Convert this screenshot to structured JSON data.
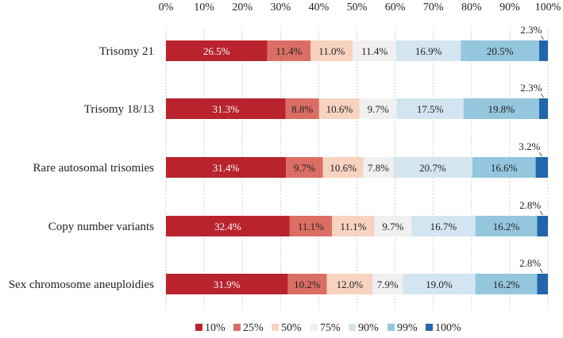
{
  "chart_data": {
    "type": "bar",
    "orientation": "horizontal",
    "stacked": true,
    "xlim": [
      0,
      100
    ],
    "x_ticks": [
      "0%",
      "10%",
      "20%",
      "30%",
      "40%",
      "50%",
      "60%",
      "70%",
      "80%",
      "90%",
      "100%"
    ],
    "legend_position": "bottom",
    "grid": true,
    "categories": [
      "Trisomy 21",
      "Trisomy 18/13",
      "Rare autosomal trisomies",
      "Copy number variants",
      "Sex chromosome aneuploidies"
    ],
    "series": [
      {
        "name": "10%",
        "color": "#b8232e",
        "label_color": "#ffffff",
        "values": [
          26.5,
          31.3,
          31.4,
          32.4,
          31.9
        ],
        "labels": [
          "26.5%",
          "31.3%",
          "31.4%",
          "32.4%",
          "31.9%"
        ]
      },
      {
        "name": "25%",
        "color": "#db6e64",
        "label_color": "#222222",
        "values": [
          11.4,
          8.8,
          9.7,
          11.1,
          10.2
        ],
        "labels": [
          "11.4%",
          "8.8%",
          "9.7%",
          "11.1%",
          "10.2%"
        ]
      },
      {
        "name": "50%",
        "color": "#f8d3c0",
        "label_color": "#222222",
        "values": [
          11.0,
          10.6,
          10.6,
          11.1,
          12.0
        ],
        "labels": [
          "11.0%",
          "10.6%",
          "10.6%",
          "11.1%",
          "12.0%"
        ]
      },
      {
        "name": "75%",
        "color": "#f0f0f0",
        "label_color": "#222222",
        "values": [
          11.4,
          9.7,
          7.8,
          9.7,
          7.9
        ],
        "labels": [
          "11.4%",
          "9.7%",
          "7.8%",
          "9.7%",
          "7.9%"
        ]
      },
      {
        "name": "90%",
        "color": "#d3e5f0",
        "label_color": "#222222",
        "values": [
          16.9,
          17.5,
          20.7,
          16.7,
          19.0
        ],
        "labels": [
          "16.9%",
          "17.5%",
          "20.7%",
          "16.7%",
          "19.0%"
        ]
      },
      {
        "name": "99%",
        "color": "#94c6de",
        "label_color": "#222222",
        "values": [
          20.5,
          19.8,
          16.6,
          16.2,
          16.2
        ],
        "labels": [
          "20.5%",
          "19.8%",
          "16.6%",
          "16.2%",
          "16.2%"
        ]
      },
      {
        "name": "100%",
        "color": "#2266aa",
        "label_color": "#222222",
        "values": [
          2.3,
          2.3,
          3.2,
          2.8,
          2.8
        ],
        "labels": [
          "2.3%",
          "2.3%",
          "3.2%",
          "2.8%",
          "2.8%"
        ]
      }
    ]
  }
}
